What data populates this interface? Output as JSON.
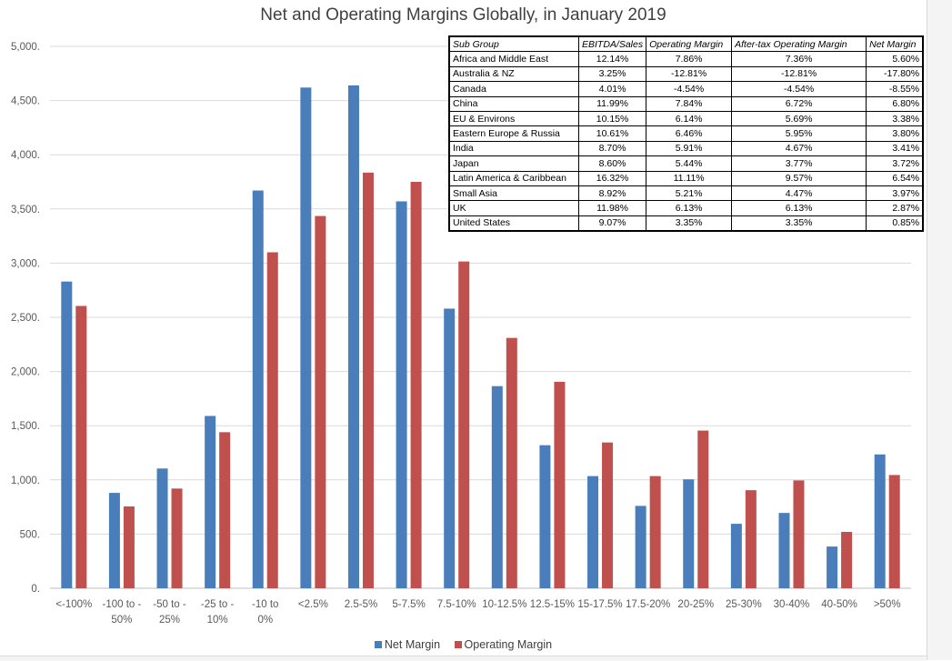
{
  "chart_data": {
    "type": "bar",
    "title": "Net and Operating Margins Globally, in January 2019",
    "categories": [
      "<-100%",
      "-100 to -50%",
      "-50 to -25%",
      "-25 to -10%",
      "-10 to 0%",
      "<2.5%",
      "2.5-5%",
      "5-7.5%",
      "7.5-10%",
      "10-12.5%",
      "12.5-15%",
      "15-17.5%",
      "17.5-20%",
      "20-25%",
      "25-30%",
      "30-40%",
      "40-50%",
      ">50%"
    ],
    "category_lines": [
      [
        "<-100%"
      ],
      [
        "-100 to -",
        "50%"
      ],
      [
        "-50 to -",
        "25%"
      ],
      [
        "-25 to -",
        "10%"
      ],
      [
        "-10 to",
        "0%"
      ],
      [
        "<2.5%"
      ],
      [
        "2.5-5%"
      ],
      [
        "5-7.5%"
      ],
      [
        "7.5-10%"
      ],
      [
        "10-12.5%"
      ],
      [
        "12.5-15%"
      ],
      [
        "15-17.5%"
      ],
      [
        "17.5-20%"
      ],
      [
        "20-25%"
      ],
      [
        "25-30%"
      ],
      [
        "30-40%"
      ],
      [
        "40-50%"
      ],
      [
        ">50%"
      ]
    ],
    "series": [
      {
        "name": "Net Margin",
        "color": "#4a7ebb",
        "values": [
          2830,
          880,
          1105,
          1590,
          3670,
          4620,
          4640,
          3570,
          2580,
          1865,
          1320,
          1035,
          760,
          1005,
          595,
          695,
          385,
          1235
        ]
      },
      {
        "name": "Operating Margin",
        "color": "#c0504d",
        "values": [
          2605,
          755,
          920,
          1440,
          3100,
          3435,
          3835,
          3750,
          3015,
          2310,
          1905,
          1345,
          1035,
          1455,
          905,
          995,
          520,
          1045
        ]
      }
    ],
    "ylim": [
      0,
      5000
    ],
    "yticks": [
      0,
      500,
      1000,
      1500,
      2000,
      2500,
      3000,
      3500,
      4000,
      4500,
      5000
    ],
    "ytick_labels": [
      "0.",
      "500.",
      "1,000.",
      "1,500.",
      "2,000.",
      "2,500.",
      "3,000.",
      "3,500.",
      "4,000.",
      "4,500.",
      "5,000."
    ],
    "xlabel": "",
    "ylabel": "",
    "grid": true,
    "legend_position": "bottom"
  },
  "table": {
    "headers": [
      "Sub Group",
      "EBITDA/Sales",
      "Operating Margin",
      "After-tax Operating Margin",
      "Net Margin"
    ],
    "rows": [
      [
        "Africa and Middle East",
        "12.14%",
        "7.86%",
        "7.36%",
        "5.60%"
      ],
      [
        "Australia & NZ",
        "3.25%",
        "-12.81%",
        "-12.81%",
        "-17.80%"
      ],
      [
        "Canada",
        "4.01%",
        "-4.54%",
        "-4.54%",
        "-8.55%"
      ],
      [
        "China",
        "11.99%",
        "7.84%",
        "6.72%",
        "6.80%"
      ],
      [
        "EU & Environs",
        "10.15%",
        "6.14%",
        "5.69%",
        "3.38%"
      ],
      [
        "Eastern Europe & Russia",
        "10.61%",
        "6.46%",
        "5.95%",
        "3.80%"
      ],
      [
        "India",
        "8.70%",
        "5.91%",
        "4.67%",
        "3.41%"
      ],
      [
        "Japan",
        "8.60%",
        "5.44%",
        "3.77%",
        "3.72%"
      ],
      [
        "Latin America & Caribbean",
        "16.32%",
        "11.11%",
        "9.57%",
        "6.54%"
      ],
      [
        "Small Asia",
        "8.92%",
        "5.21%",
        "4.47%",
        "3.97%"
      ],
      [
        "UK",
        "11.98%",
        "6.13%",
        "6.13%",
        "2.87%"
      ],
      [
        "United States",
        "9.07%",
        "3.35%",
        "3.35%",
        "0.85%"
      ]
    ]
  }
}
